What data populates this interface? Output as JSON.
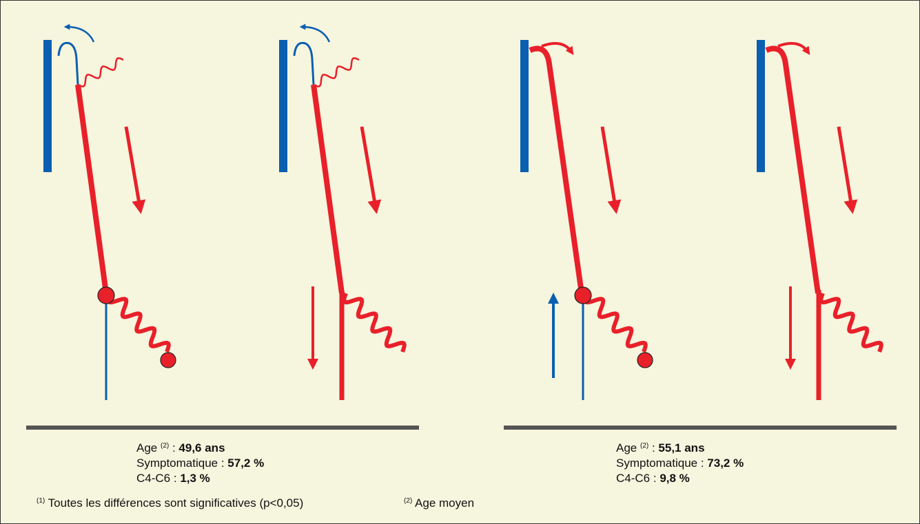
{
  "groups": [
    {
      "lines": [
        {
          "label": "Age",
          "note": "(2)",
          "colon": ":",
          "value": "49,6 ans"
        },
        {
          "label": "Symptomatique :",
          "value": "57,2 %"
        },
        {
          "label": "C4-C6 :",
          "value": "1,3 %"
        }
      ]
    },
    {
      "lines": [
        {
          "label": "Age",
          "note": "(2)",
          "colon": ":",
          "value": "55,1 ans"
        },
        {
          "label": "Symptomatique :",
          "value": "73,2 %"
        },
        {
          "label": "C4-C6 :",
          "value": "9,8 %"
        }
      ]
    }
  ],
  "footnotes": [
    {
      "mark": "(1)",
      "text": "Toutes les différences sont significatives (p<0,05)"
    },
    {
      "mark": "(2)",
      "text": "Age moyen"
    }
  ]
}
